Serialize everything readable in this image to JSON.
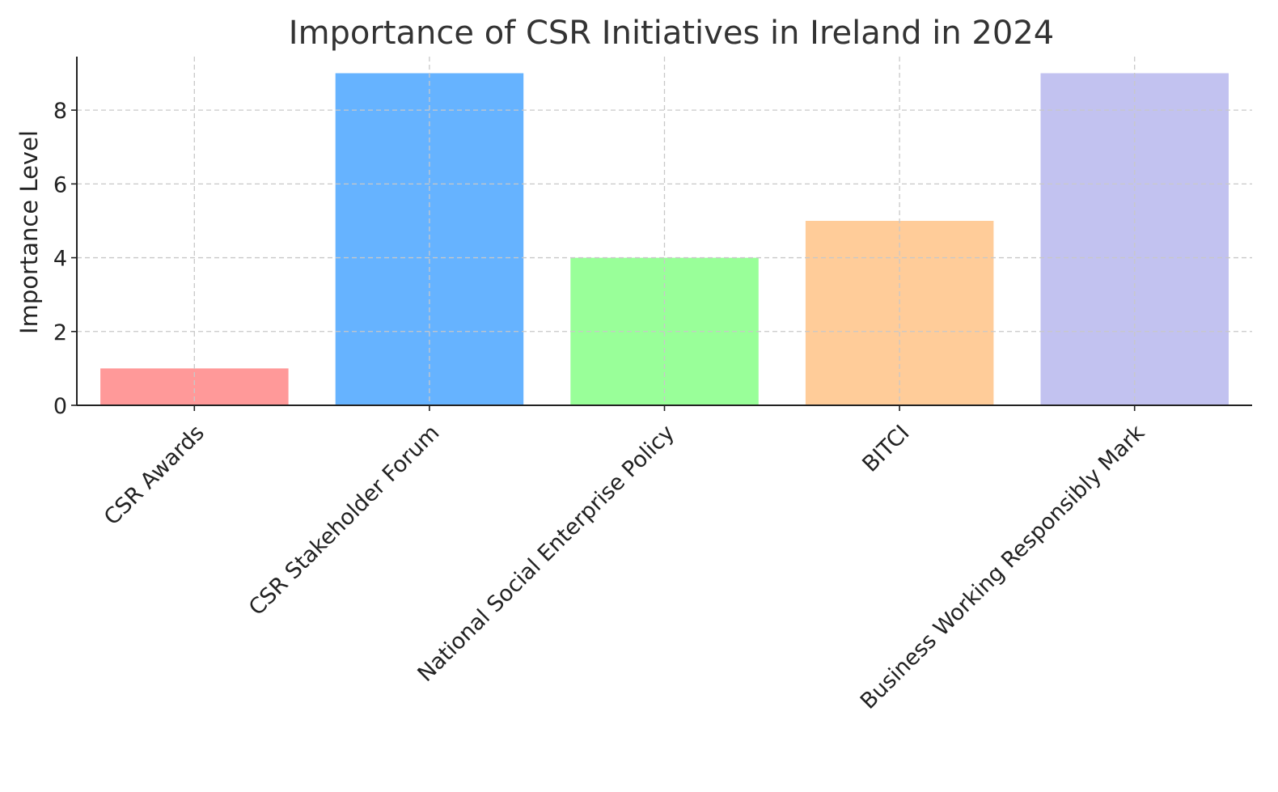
{
  "chart_data": {
    "type": "bar",
    "title": "Importance of CSR Initiatives in Ireland in 2024",
    "xlabel": "",
    "ylabel": "Importance Level",
    "categories": [
      "CSR Awards",
      "CSR Stakeholder Forum",
      "National Social Enterprise Policy",
      "BITCI",
      "Business Working Responsibly Mark"
    ],
    "values": [
      1,
      9,
      4,
      5,
      9
    ],
    "colors": [
      "#ff9999",
      "#66b3ff",
      "#99ff99",
      "#ffcc99",
      "#c2c2f0"
    ],
    "ylim": [
      0,
      9.45
    ],
    "yticks": [
      0,
      2,
      4,
      6,
      8
    ],
    "grid": true,
    "legend": "none"
  }
}
